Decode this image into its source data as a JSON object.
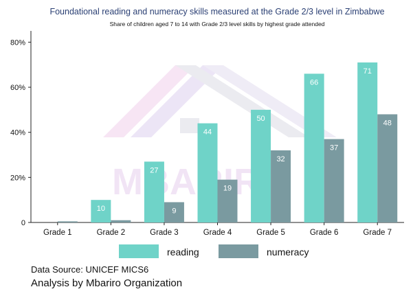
{
  "chart_data": {
    "type": "bar",
    "title": "Foundational reading and numeracy skills measured at the Grade 2/3 level in Zimbabwe",
    "subtitle": "Share of children aged 7 to 14 with Grade 2/3 level skills by highest grade attended",
    "categories": [
      "Grade 1",
      "Grade 2",
      "Grade 3",
      "Grade 4",
      "Grade 5",
      "Grade 6",
      "Grade 7"
    ],
    "series": [
      {
        "name": "reading",
        "color": "#6fd3c8",
        "values": [
          0,
          10,
          27,
          44,
          50,
          66,
          71
        ],
        "labels": [
          "",
          "10",
          "27",
          "44",
          "50",
          "66",
          "71"
        ]
      },
      {
        "name": "numeracy",
        "color": "#7a9aa0",
        "values": [
          0.5,
          1,
          9,
          19,
          32,
          37,
          48
        ],
        "labels": [
          "",
          "",
          "9",
          "19",
          "32",
          "37",
          "48"
        ]
      }
    ],
    "yticks": [
      "0",
      "20%",
      "40%",
      "60%",
      "80%"
    ],
    "ytick_values": [
      0,
      20,
      40,
      60,
      80
    ],
    "ylim": [
      0,
      85
    ],
    "grid": false,
    "legend": "bottom-center"
  },
  "watermark": {
    "text": "MBARIRO",
    "color": "#d9b3e3"
  },
  "footer": {
    "source": "Data Source: UNICEF MICS6",
    "credit": "Analysis by Mbariro Organization"
  }
}
